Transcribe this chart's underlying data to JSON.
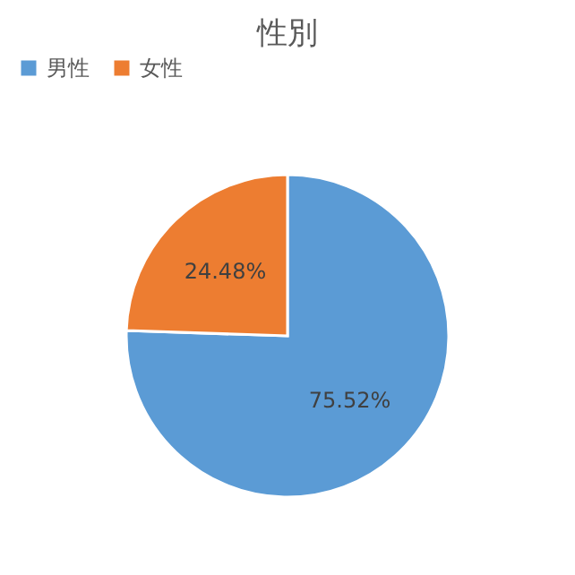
{
  "chart_data": {
    "type": "pie",
    "title": "性別",
    "categories": [
      "男性",
      "女性"
    ],
    "values": [
      75.52,
      24.48
    ],
    "colors": [
      "#5b9bd5",
      "#ed7d31"
    ],
    "value_labels": [
      "75.52%",
      "24.48%"
    ],
    "legend": "top"
  }
}
